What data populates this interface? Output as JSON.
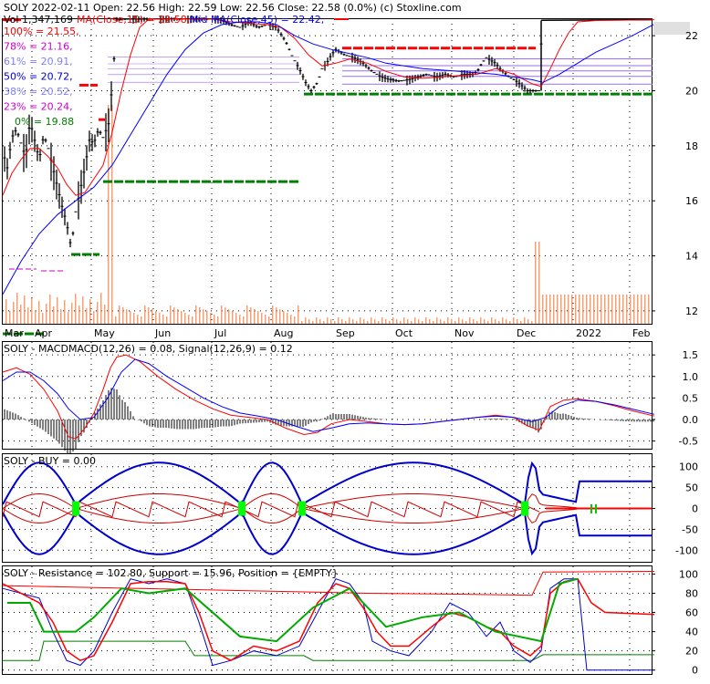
{
  "colors": {
    "price": "#000000",
    "ma15": "#ff0000",
    "ma45": "#0000ff",
    "support": "#008000",
    "resistance": "#ff0000",
    "fib": "#9a6aff",
    "volume": "#f4a070",
    "macd_line": "#ff0000",
    "signal_line": "#0000ff",
    "buy_marker": "#00ff00",
    "grid": "#000000"
  },
  "header": {
    "line1": "SOLY  2022-02-11 Open: 22.56  High: 22.59  Low: 22.56  Close: 22.58 (0.0%)  (c) Stoxline.com",
    "vol": "Vol 1,347,169",
    "ma": "MA(Close,15) = 22.58,",
    "midma": "Mid MA(Close,45) = 22.42,"
  },
  "fib_labels": [
    {
      "text": "100% = 21.55,",
      "color": "#ff0000"
    },
    {
      "text": "78% = 21.16,",
      "color": "#cc00cc"
    },
    {
      "text": "61% = 20.91,",
      "color": "#7f7fff"
    },
    {
      "text": "50% = 20.72,",
      "color": "#0000cc"
    },
    {
      "text": "38% = 20.52,",
      "color": "#7f7fff"
    },
    {
      "text": "23% = 20.24,",
      "color": "#cc00cc"
    },
    {
      "text": "0% = 19.88",
      "color": "#008000"
    }
  ],
  "chart_data": [
    {
      "type": "candlestick",
      "x_ticks": [
        "Mar",
        "Apr",
        "May",
        "Jun",
        "Jul",
        "Aug",
        "Sep",
        "Oct",
        "Nov",
        "Dec",
        "2022",
        "Feb"
      ],
      "y_ticks": [
        12,
        14,
        16,
        18,
        20,
        22
      ],
      "ylim": [
        11.5,
        22.6
      ],
      "price_points": [
        [
          0,
          17.8
        ],
        [
          5,
          17.2
        ],
        [
          10,
          18.3
        ],
        [
          15,
          18.6
        ],
        [
          20,
          18.1
        ],
        [
          25,
          17.6
        ],
        [
          30,
          18.9
        ],
        [
          35,
          18.2
        ],
        [
          40,
          17.5
        ],
        [
          45,
          18.4
        ],
        [
          50,
          17.9
        ],
        [
          55,
          17.2
        ],
        [
          60,
          16.5
        ],
        [
          65,
          15.8
        ],
        [
          70,
          15.2
        ],
        [
          75,
          14.3
        ],
        [
          80,
          15.6
        ],
        [
          85,
          16.4
        ],
        [
          90,
          17.2
        ],
        [
          95,
          18.2
        ],
        [
          100,
          18.1
        ],
        [
          105,
          18.6
        ],
        [
          110,
          18.3
        ],
        [
          116,
          18.8
        ],
        [
          120,
          20.2
        ],
        [
          125,
          22.6
        ],
        [
          130,
          22.6
        ],
        [
          140,
          22.6
        ],
        [
          150,
          22.6
        ],
        [
          160,
          22.6
        ],
        [
          170,
          22.6
        ],
        [
          180,
          22.6
        ],
        [
          190,
          22.6
        ],
        [
          200,
          22.6
        ],
        [
          210,
          22.6
        ],
        [
          220,
          22.6
        ],
        [
          228,
          22.6
        ],
        [
          234,
          22.6
        ],
        [
          240,
          22.55
        ],
        [
          250,
          22.4
        ],
        [
          260,
          22.3
        ],
        [
          270,
          22.5
        ],
        [
          280,
          22.3
        ],
        [
          290,
          22.4
        ],
        [
          300,
          22.3
        ],
        [
          310,
          21.8
        ],
        [
          318,
          21.2
        ],
        [
          325,
          20.8
        ],
        [
          332,
          20.3
        ],
        [
          338,
          20.0
        ],
        [
          345,
          20.3
        ],
        [
          350,
          20.8
        ],
        [
          355,
          21.0
        ],
        [
          360,
          21.3
        ],
        [
          365,
          21.5
        ],
        [
          370,
          21.4
        ],
        [
          375,
          21.3
        ],
        [
          385,
          21.2
        ],
        [
          395,
          21.0
        ],
        [
          405,
          20.7
        ],
        [
          415,
          20.5
        ],
        [
          425,
          20.4
        ],
        [
          435,
          20.35
        ],
        [
          445,
          20.4
        ],
        [
          455,
          20.5
        ],
        [
          465,
          20.6
        ],
        [
          475,
          20.5
        ],
        [
          485,
          20.6
        ],
        [
          495,
          20.5
        ],
        [
          505,
          20.6
        ],
        [
          515,
          20.6
        ],
        [
          520,
          20.7
        ],
        [
          525,
          21.0
        ],
        [
          530,
          21.2
        ],
        [
          535,
          21.1
        ],
        [
          540,
          21.0
        ],
        [
          545,
          20.8
        ],
        [
          555,
          20.5
        ],
        [
          565,
          20.3
        ],
        [
          575,
          20.0
        ],
        [
          583,
          20.0
        ],
        [
          588,
          20.0
        ],
        [
          591,
          22.55
        ],
        [
          600,
          22.55
        ],
        [
          620,
          22.55
        ],
        [
          640,
          22.55
        ],
        [
          660,
          22.55
        ],
        [
          680,
          22.56
        ],
        [
          700,
          22.57
        ],
        [
          714,
          22.58
        ]
      ],
      "ma15_points": [
        [
          0,
          16.2
        ],
        [
          10,
          17.0
        ],
        [
          20,
          17.5
        ],
        [
          30,
          17.9
        ],
        [
          40,
          17.9
        ],
        [
          50,
          17.6
        ],
        [
          60,
          17.2
        ],
        [
          70,
          16.6
        ],
        [
          80,
          16.2
        ],
        [
          90,
          16.3
        ],
        [
          100,
          16.8
        ],
        [
          110,
          17.3
        ],
        [
          120,
          18.5
        ],
        [
          130,
          20.0
        ],
        [
          140,
          21.3
        ],
        [
          150,
          22.3
        ],
        [
          160,
          22.6
        ],
        [
          180,
          22.6
        ],
        [
          200,
          22.6
        ],
        [
          230,
          22.6
        ],
        [
          250,
          22.5
        ],
        [
          270,
          22.45
        ],
        [
          290,
          22.4
        ],
        [
          305,
          22.3
        ],
        [
          320,
          21.9
        ],
        [
          335,
          21.3
        ],
        [
          350,
          20.9
        ],
        [
          365,
          21.0
        ],
        [
          380,
          21.15
        ],
        [
          400,
          21.0
        ],
        [
          420,
          20.7
        ],
        [
          440,
          20.5
        ],
        [
          460,
          20.45
        ],
        [
          480,
          20.5
        ],
        [
          500,
          20.55
        ],
        [
          520,
          20.6
        ],
        [
          540,
          20.8
        ],
        [
          560,
          20.6
        ],
        [
          580,
          20.25
        ],
        [
          590,
          20.15
        ],
        [
          600,
          20.8
        ],
        [
          610,
          21.5
        ],
        [
          620,
          22.1
        ],
        [
          630,
          22.5
        ],
        [
          650,
          22.55
        ],
        [
          714,
          22.58
        ]
      ],
      "ma45_points": [
        [
          0,
          12.6
        ],
        [
          20,
          13.8
        ],
        [
          40,
          14.8
        ],
        [
          60,
          15.5
        ],
        [
          80,
          16.0
        ],
        [
          100,
          16.5
        ],
        [
          120,
          17.3
        ],
        [
          140,
          18.4
        ],
        [
          160,
          19.5
        ],
        [
          180,
          20.6
        ],
        [
          200,
          21.5
        ],
        [
          220,
          22.1
        ],
        [
          240,
          22.4
        ],
        [
          260,
          22.5
        ],
        [
          280,
          22.5
        ],
        [
          300,
          22.4
        ],
        [
          320,
          22.0
        ],
        [
          340,
          21.7
        ],
        [
          360,
          21.5
        ],
        [
          380,
          21.35
        ],
        [
          400,
          21.2
        ],
        [
          420,
          21.0
        ],
        [
          440,
          20.9
        ],
        [
          460,
          20.8
        ],
        [
          480,
          20.75
        ],
        [
          500,
          20.7
        ],
        [
          520,
          20.65
        ],
        [
          540,
          20.6
        ],
        [
          560,
          20.5
        ],
        [
          580,
          20.4
        ],
        [
          592,
          20.3
        ],
        [
          610,
          20.6
        ],
        [
          630,
          21.0
        ],
        [
          650,
          21.4
        ],
        [
          670,
          21.7
        ],
        [
          690,
          22.0
        ],
        [
          714,
          22.42
        ]
      ],
      "support_levels": [
        {
          "value": 19.88,
          "x_from": 330,
          "x_to": 714
        },
        {
          "value": 16.7,
          "x_from": 110,
          "x_to": 326
        },
        {
          "value": 14.05,
          "x_from": 75,
          "x_to": 106
        },
        {
          "value": 11.17,
          "x_from": 0,
          "x_to": 45
        }
      ],
      "resistance_levels": [
        {
          "value": 21.55,
          "x_from": 372,
          "x_to": 584
        },
        {
          "value": 22.58,
          "x_from": 0,
          "x_to": 20
        },
        {
          "value": 20.2,
          "x_from": 84,
          "x_to": 104
        },
        {
          "value": 18.95,
          "x_from": 105,
          "x_to": 112
        }
      ],
      "fib_levels": [
        21.16,
        20.91,
        20.72,
        20.52,
        20.24
      ],
      "volume_spike_at": 590
    },
    {
      "type": "line",
      "title": "SOLY - MACDMACD(12,26) = 0.08, Signal(12,26,9) = 0.12",
      "y_ticks": [
        -0.5,
        0.0,
        0.5,
        1.0,
        1.5
      ],
      "ylim": [
        -0.7,
        1.8
      ],
      "macd": [
        [
          0,
          1.1
        ],
        [
          15,
          1.2
        ],
        [
          30,
          1.05
        ],
        [
          45,
          0.7
        ],
        [
          60,
          0.2
        ],
        [
          72,
          -0.4
        ],
        [
          80,
          -0.45
        ],
        [
          90,
          -0.2
        ],
        [
          100,
          0.15
        ],
        [
          110,
          0.7
        ],
        [
          118,
          1.2
        ],
        [
          125,
          1.45
        ],
        [
          135,
          1.5
        ],
        [
          150,
          1.35
        ],
        [
          170,
          1.0
        ],
        [
          190,
          0.7
        ],
        [
          210,
          0.45
        ],
        [
          230,
          0.25
        ],
        [
          250,
          0.1
        ],
        [
          270,
          0.05
        ],
        [
          290,
          0.0
        ],
        [
          310,
          -0.2
        ],
        [
          330,
          -0.35
        ],
        [
          345,
          -0.3
        ],
        [
          360,
          -0.1
        ],
        [
          380,
          0.0
        ],
        [
          400,
          -0.05
        ],
        [
          420,
          -0.1
        ],
        [
          440,
          -0.12
        ],
        [
          460,
          -0.1
        ],
        [
          480,
          -0.05
        ],
        [
          500,
          0.0
        ],
        [
          520,
          0.05
        ],
        [
          540,
          0.1
        ],
        [
          560,
          0.05
        ],
        [
          575,
          -0.15
        ],
        [
          588,
          -0.25
        ],
        [
          600,
          0.3
        ],
        [
          615,
          0.45
        ],
        [
          630,
          0.48
        ],
        [
          650,
          0.42
        ],
        [
          670,
          0.32
        ],
        [
          690,
          0.2
        ],
        [
          714,
          0.08
        ]
      ],
      "signal": [
        [
          0,
          0.9
        ],
        [
          15,
          1.1
        ],
        [
          30,
          1.1
        ],
        [
          45,
          0.9
        ],
        [
          60,
          0.6
        ],
        [
          72,
          0.25
        ],
        [
          85,
          0.0
        ],
        [
          100,
          0.05
        ],
        [
          115,
          0.5
        ],
        [
          130,
          1.1
        ],
        [
          145,
          1.4
        ],
        [
          160,
          1.3
        ],
        [
          180,
          1.0
        ],
        [
          200,
          0.75
        ],
        [
          220,
          0.5
        ],
        [
          240,
          0.3
        ],
        [
          260,
          0.15
        ],
        [
          280,
          0.08
        ],
        [
          300,
          0.0
        ],
        [
          320,
          -0.15
        ],
        [
          340,
          -0.28
        ],
        [
          360,
          -0.2
        ],
        [
          380,
          -0.1
        ],
        [
          400,
          -0.08
        ],
        [
          420,
          -0.1
        ],
        [
          440,
          -0.12
        ],
        [
          460,
          -0.1
        ],
        [
          480,
          -0.05
        ],
        [
          500,
          0.0
        ],
        [
          520,
          0.05
        ],
        [
          540,
          0.08
        ],
        [
          560,
          0.05
        ],
        [
          580,
          -0.05
        ],
        [
          595,
          0.05
        ],
        [
          610,
          0.3
        ],
        [
          630,
          0.45
        ],
        [
          650,
          0.42
        ],
        [
          670,
          0.34
        ],
        [
          690,
          0.24
        ],
        [
          714,
          0.12
        ]
      ]
    },
    {
      "type": "line",
      "title": "SOLY - BUY = 0.00",
      "y_ticks": [
        -100,
        -50,
        0,
        50,
        100
      ],
      "ylim": [
        -130,
        130
      ],
      "buy_marker_x": [
        80,
        262,
        328,
        572
      ]
    },
    {
      "type": "line",
      "title": "SOLY - Resistance = 102.80, Support = 15.96, Position = {EMPTY}",
      "y_ticks": [
        0,
        20,
        40,
        60,
        80,
        100
      ],
      "ylim": [
        -5,
        108
      ],
      "resistance": [
        [
          0,
          88
        ],
        [
          100,
          86
        ],
        [
          200,
          84
        ],
        [
          300,
          82
        ],
        [
          400,
          80
        ],
        [
          500,
          79
        ],
        [
          580,
          78
        ],
        [
          592,
          102
        ],
        [
          714,
          102.8
        ]
      ],
      "support": [
        [
          0,
          10
        ],
        [
          40,
          10
        ],
        [
          45,
          30
        ],
        [
          180,
          30
        ],
        [
          200,
          30
        ],
        [
          210,
          15
        ],
        [
          330,
          15
        ],
        [
          340,
          10
        ],
        [
          580,
          10
        ],
        [
          592,
          16
        ],
        [
          714,
          15.96
        ]
      ]
    }
  ]
}
